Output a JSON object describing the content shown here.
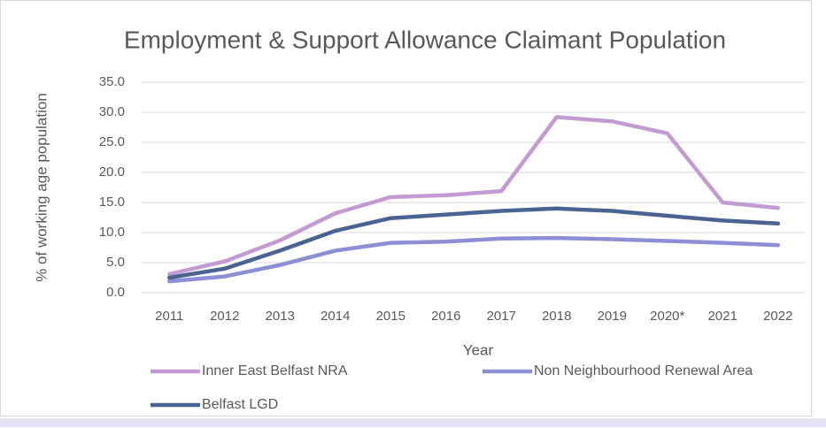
{
  "chart_data": {
    "type": "line",
    "title": "Employment & Support Allowance Claimant Population",
    "x_label": "Year",
    "y_label": "% of working age population",
    "categories": [
      "2011",
      "2012",
      "2013",
      "2014",
      "2015",
      "2016",
      "2017",
      "2018",
      "2019",
      "2020*",
      "2021",
      "2022"
    ],
    "series": [
      {
        "name": "Inner East Belfast NRA",
        "color": "#c39bd3",
        "values": [
          3.1,
          5.2,
          8.7,
          13.2,
          15.9,
          16.2,
          16.9,
          29.2,
          28.5,
          26.5,
          15.0,
          14.1
        ]
      },
      {
        "name": "Non Neighbourhood Renewal Area",
        "color": "#8d8fd5",
        "values": [
          1.9,
          2.7,
          4.6,
          7.0,
          8.3,
          8.5,
          9.0,
          9.1,
          8.9,
          8.6,
          8.3,
          7.9
        ]
      },
      {
        "name": "Belfast LGD",
        "color": "#4a6391",
        "values": [
          2.5,
          4.0,
          7.0,
          10.3,
          12.4,
          13.0,
          13.6,
          14.0,
          13.6,
          12.8,
          12.0,
          11.5
        ]
      }
    ],
    "ylim": [
      0,
      35
    ],
    "yticks": [
      {
        "value": 0,
        "label": "0.0"
      },
      {
        "value": 5,
        "label": "5.0"
      },
      {
        "value": 10,
        "label": "10.0"
      },
      {
        "value": 15,
        "label": "15.0"
      },
      {
        "value": 20,
        "label": "20.0"
      },
      {
        "value": 25,
        "label": "25.0"
      },
      {
        "value": 30,
        "label": "30.0"
      },
      {
        "value": 35,
        "label": "35.0"
      }
    ],
    "grid": true
  }
}
